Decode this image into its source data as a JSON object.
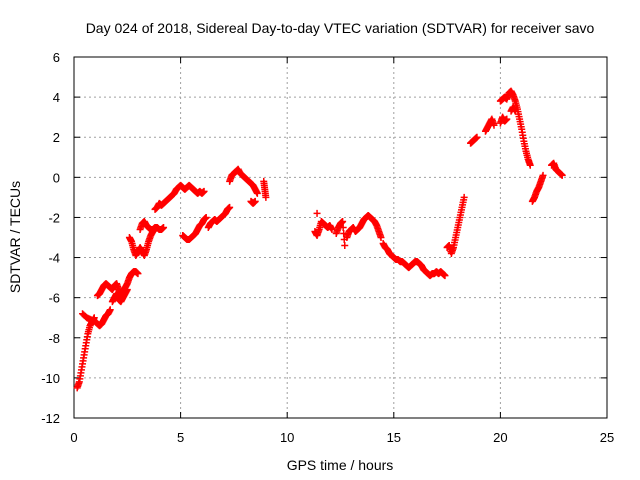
{
  "chart_data": {
    "type": "scatter",
    "title": "Day 024 of 2018, Sidereal Day-to-day VTEC variation (SDTVAR) for receiver savo",
    "xlabel": "GPS time / hours",
    "ylabel": "SDTVAR / TECUs",
    "xlim": [
      0,
      25
    ],
    "ylim": [
      -12,
      6
    ],
    "xticks": [
      0,
      5,
      10,
      15,
      20,
      25
    ],
    "yticks": [
      -12,
      -10,
      -8,
      -6,
      -4,
      -2,
      0,
      2,
      4,
      6
    ],
    "xtick_labels": [
      "0",
      "5",
      "10",
      "15",
      "20",
      "25"
    ],
    "ytick_labels": [
      "-12",
      "-10",
      "-8",
      "-6",
      "-4",
      "-2",
      "0",
      "2",
      "4",
      "6"
    ],
    "grid": true,
    "marker": "+",
    "color": "#ff0000",
    "series": [
      {
        "name": "SDTVAR",
        "segments": [
          [
            [
              0.15,
              -10.5
            ],
            [
              0.25,
              -10.2
            ],
            [
              0.35,
              -9.6
            ],
            [
              0.45,
              -9.0
            ],
            [
              0.55,
              -8.4
            ],
            [
              0.65,
              -7.8
            ],
            [
              0.75,
              -7.4
            ],
            [
              0.85,
              -7.2
            ],
            [
              0.95,
              -7.0
            ]
          ],
          [
            [
              0.4,
              -6.8
            ],
            [
              0.6,
              -7.0
            ],
            [
              0.8,
              -7.1
            ],
            [
              1.0,
              -7.2
            ],
            [
              1.1,
              -7.3
            ],
            [
              1.2,
              -7.4
            ],
            [
              1.3,
              -7.3
            ],
            [
              1.4,
              -7.1
            ],
            [
              1.5,
              -6.9
            ],
            [
              1.6,
              -6.8
            ],
            [
              1.7,
              -6.6
            ]
          ],
          [
            [
              1.1,
              -5.9
            ],
            [
              1.2,
              -5.8
            ],
            [
              1.3,
              -5.6
            ],
            [
              1.4,
              -5.4
            ],
            [
              1.5,
              -5.3
            ],
            [
              1.6,
              -5.4
            ],
            [
              1.7,
              -5.5
            ],
            [
              1.8,
              -5.6
            ],
            [
              1.9,
              -5.4
            ],
            [
              2.0,
              -5.3
            ],
            [
              2.1,
              -5.6
            ],
            [
              2.2,
              -5.9
            ],
            [
              2.3,
              -5.7
            ],
            [
              2.4,
              -5.5
            ],
            [
              2.5,
              -5.3
            ],
            [
              2.6,
              -5.0
            ],
            [
              2.7,
              -4.8
            ],
            [
              2.8,
              -4.7
            ],
            [
              2.9,
              -4.7
            ],
            [
              3.0,
              -4.8
            ]
          ],
          [
            [
              1.8,
              -6.2
            ],
            [
              1.9,
              -6.0
            ],
            [
              2.0,
              -5.8
            ],
            [
              2.1,
              -6.1
            ],
            [
              2.2,
              -6.2
            ],
            [
              2.3,
              -6.0
            ],
            [
              2.4,
              -5.8
            ],
            [
              2.5,
              -5.6
            ]
          ],
          [
            [
              2.6,
              -3.0
            ],
            [
              2.7,
              -3.2
            ],
            [
              2.8,
              -3.6
            ],
            [
              2.9,
              -3.9
            ],
            [
              3.0,
              -3.7
            ],
            [
              3.1,
              -3.5
            ],
            [
              3.2,
              -3.7
            ],
            [
              3.3,
              -3.9
            ],
            [
              3.4,
              -3.6
            ],
            [
              3.5,
              -3.2
            ],
            [
              3.6,
              -2.9
            ],
            [
              3.7,
              -2.7
            ],
            [
              3.8,
              -2.6
            ]
          ],
          [
            [
              3.1,
              -2.6
            ],
            [
              3.2,
              -2.3
            ],
            [
              3.3,
              -2.2
            ],
            [
              3.4,
              -2.4
            ],
            [
              3.5,
              -2.5
            ],
            [
              3.6,
              -2.6
            ],
            [
              3.7,
              -2.6
            ],
            [
              3.8,
              -2.5
            ],
            [
              3.9,
              -2.5
            ],
            [
              4.0,
              -2.6
            ],
            [
              4.1,
              -2.6
            ],
            [
              4.2,
              -2.5
            ]
          ],
          [
            [
              3.8,
              -1.6
            ],
            [
              3.9,
              -1.5
            ],
            [
              4.0,
              -1.3
            ],
            [
              4.1,
              -1.4
            ],
            [
              4.2,
              -1.3
            ],
            [
              4.3,
              -1.2
            ],
            [
              4.4,
              -1.1
            ],
            [
              4.5,
              -1.0
            ],
            [
              4.6,
              -0.9
            ],
            [
              4.7,
              -0.8
            ],
            [
              4.8,
              -0.6
            ],
            [
              4.9,
              -0.5
            ],
            [
              5.0,
              -0.4
            ],
            [
              5.1,
              -0.5
            ],
            [
              5.2,
              -0.6
            ],
            [
              5.3,
              -0.5
            ],
            [
              5.4,
              -0.4
            ],
            [
              5.5,
              -0.5
            ],
            [
              5.6,
              -0.6
            ],
            [
              5.7,
              -0.7
            ],
            [
              5.8,
              -0.8
            ],
            [
              5.9,
              -0.7
            ],
            [
              6.0,
              -0.8
            ],
            [
              6.1,
              -0.7
            ]
          ],
          [
            [
              5.1,
              -2.9
            ],
            [
              5.2,
              -3.0
            ],
            [
              5.3,
              -3.1
            ],
            [
              5.4,
              -3.1
            ],
            [
              5.5,
              -3.0
            ],
            [
              5.6,
              -2.9
            ],
            [
              5.7,
              -2.8
            ],
            [
              5.8,
              -2.6
            ],
            [
              5.9,
              -2.4
            ],
            [
              6.0,
              -2.3
            ],
            [
              6.1,
              -2.1
            ],
            [
              6.2,
              -2.0
            ]
          ],
          [
            [
              6.3,
              -2.5
            ],
            [
              6.4,
              -2.3
            ],
            [
              6.5,
              -2.2
            ],
            [
              6.6,
              -2.1
            ],
            [
              6.7,
              -2.2
            ],
            [
              6.8,
              -2.1
            ],
            [
              6.9,
              -2.0
            ],
            [
              7.0,
              -1.9
            ],
            [
              7.1,
              -1.8
            ],
            [
              7.2,
              -1.6
            ],
            [
              7.3,
              -1.5
            ]
          ],
          [
            [
              7.3,
              -0.2
            ],
            [
              7.4,
              0.1
            ],
            [
              7.5,
              0.2
            ],
            [
              7.6,
              0.3
            ],
            [
              7.7,
              0.4
            ],
            [
              7.8,
              0.2
            ],
            [
              7.9,
              0.1
            ],
            [
              8.0,
              0.0
            ],
            [
              8.1,
              -0.1
            ],
            [
              8.2,
              -0.2
            ],
            [
              8.3,
              -0.3
            ],
            [
              8.4,
              -0.4
            ],
            [
              8.5,
              -0.6
            ],
            [
              8.6,
              -0.8
            ]
          ],
          [
            [
              8.3,
              -1.2
            ],
            [
              8.4,
              -1.3
            ],
            [
              8.5,
              -1.2
            ]
          ],
          [
            [
              8.9,
              -0.2
            ],
            [
              8.95,
              -0.6
            ],
            [
              9.0,
              -1.0
            ]
          ],
          [
            [
              11.3,
              -2.7
            ],
            [
              11.4,
              -2.9
            ],
            [
              11.5,
              -2.6
            ],
            [
              11.6,
              -2.2
            ],
            [
              11.7,
              -2.3
            ],
            [
              11.8,
              -2.4
            ],
            [
              11.9,
              -2.5
            ],
            [
              12.0,
              -2.4
            ],
            [
              12.1,
              -2.6
            ]
          ],
          [
            [
              11.4,
              -1.8
            ]
          ],
          [
            [
              12.3,
              -2.8
            ],
            [
              12.4,
              -2.5
            ],
            [
              12.5,
              -2.3
            ],
            [
              12.6,
              -2.2
            ],
            [
              12.7,
              -3.4
            ]
          ],
          [
            [
              12.8,
              -3.0
            ],
            [
              12.9,
              -2.7
            ],
            [
              13.0,
              -2.6
            ],
            [
              13.1,
              -2.5
            ],
            [
              13.2,
              -2.7
            ],
            [
              13.3,
              -2.6
            ],
            [
              13.4,
              -2.5
            ],
            [
              13.5,
              -2.3
            ],
            [
              13.6,
              -2.1
            ],
            [
              13.7,
              -2.0
            ],
            [
              13.8,
              -1.9
            ],
            [
              13.9,
              -2.0
            ],
            [
              14.0,
              -2.1
            ],
            [
              14.1,
              -2.2
            ],
            [
              14.2,
              -2.4
            ],
            [
              14.3,
              -2.7
            ],
            [
              14.4,
              -3.0
            ]
          ],
          [
            [
              14.5,
              -3.3
            ],
            [
              14.6,
              -3.5
            ],
            [
              14.7,
              -3.6
            ],
            [
              14.8,
              -3.8
            ],
            [
              14.9,
              -3.9
            ],
            [
              15.0,
              -4.0
            ],
            [
              15.1,
              -4.1
            ],
            [
              15.2,
              -4.1
            ],
            [
              15.3,
              -4.2
            ],
            [
              15.4,
              -4.2
            ],
            [
              15.5,
              -4.3
            ],
            [
              15.6,
              -4.4
            ],
            [
              15.7,
              -4.5
            ],
            [
              15.8,
              -4.4
            ],
            [
              15.9,
              -4.3
            ],
            [
              16.0,
              -4.2
            ],
            [
              16.1,
              -4.2
            ],
            [
              16.2,
              -4.3
            ],
            [
              16.3,
              -4.4
            ],
            [
              16.4,
              -4.6
            ],
            [
              16.5,
              -4.7
            ],
            [
              16.6,
              -4.8
            ],
            [
              16.7,
              -4.9
            ],
            [
              16.8,
              -4.8
            ],
            [
              16.9,
              -4.8
            ],
            [
              17.0,
              -4.7
            ],
            [
              17.1,
              -4.8
            ],
            [
              17.2,
              -4.7
            ],
            [
              17.3,
              -4.8
            ],
            [
              17.4,
              -4.9
            ]
          ],
          [
            [
              17.5,
              -3.5
            ],
            [
              17.6,
              -3.4
            ],
            [
              17.7,
              -3.8
            ],
            [
              17.8,
              -3.5
            ],
            [
              17.9,
              -3.0
            ],
            [
              18.0,
              -2.5
            ],
            [
              18.1,
              -2.0
            ],
            [
              18.2,
              -1.5
            ],
            [
              18.3,
              -1.0
            ]
          ],
          [
            [
              18.6,
              1.7
            ],
            [
              18.7,
              1.8
            ],
            [
              18.8,
              1.9
            ],
            [
              18.9,
              2.0
            ]
          ],
          [
            [
              19.3,
              2.3
            ],
            [
              19.4,
              2.5
            ],
            [
              19.5,
              2.7
            ],
            [
              19.6,
              2.9
            ],
            [
              19.7,
              2.6
            ]
          ],
          [
            [
              20.0,
              2.7
            ],
            [
              20.1,
              3.0
            ],
            [
              20.2,
              2.8
            ],
            [
              20.3,
              2.9
            ]
          ],
          [
            [
              20.0,
              3.8
            ],
            [
              20.1,
              3.9
            ],
            [
              20.2,
              4.0
            ],
            [
              20.3,
              3.9
            ],
            [
              20.4,
              4.2
            ],
            [
              20.5,
              4.3
            ],
            [
              20.6,
              4.1
            ],
            [
              20.7,
              3.8
            ],
            [
              20.8,
              3.4
            ],
            [
              20.9,
              2.9
            ],
            [
              21.0,
              2.4
            ],
            [
              21.1,
              1.8
            ],
            [
              21.2,
              1.3
            ],
            [
              21.3,
              0.9
            ],
            [
              21.4,
              0.6
            ]
          ],
          [
            [
              20.5,
              3.3
            ],
            [
              20.6,
              3.5
            ],
            [
              20.7,
              3.3
            ]
          ],
          [
            [
              21.5,
              -1.2
            ],
            [
              21.6,
              -1.0
            ],
            [
              21.7,
              -0.7
            ],
            [
              21.8,
              -0.5
            ],
            [
              21.9,
              -0.2
            ],
            [
              22.0,
              0.1
            ]
          ],
          [
            [
              22.4,
              0.6
            ],
            [
              22.5,
              0.7
            ],
            [
              22.6,
              0.4
            ],
            [
              22.7,
              0.3
            ],
            [
              22.8,
              0.2
            ],
            [
              22.9,
              0.1
            ]
          ]
        ]
      }
    ]
  }
}
